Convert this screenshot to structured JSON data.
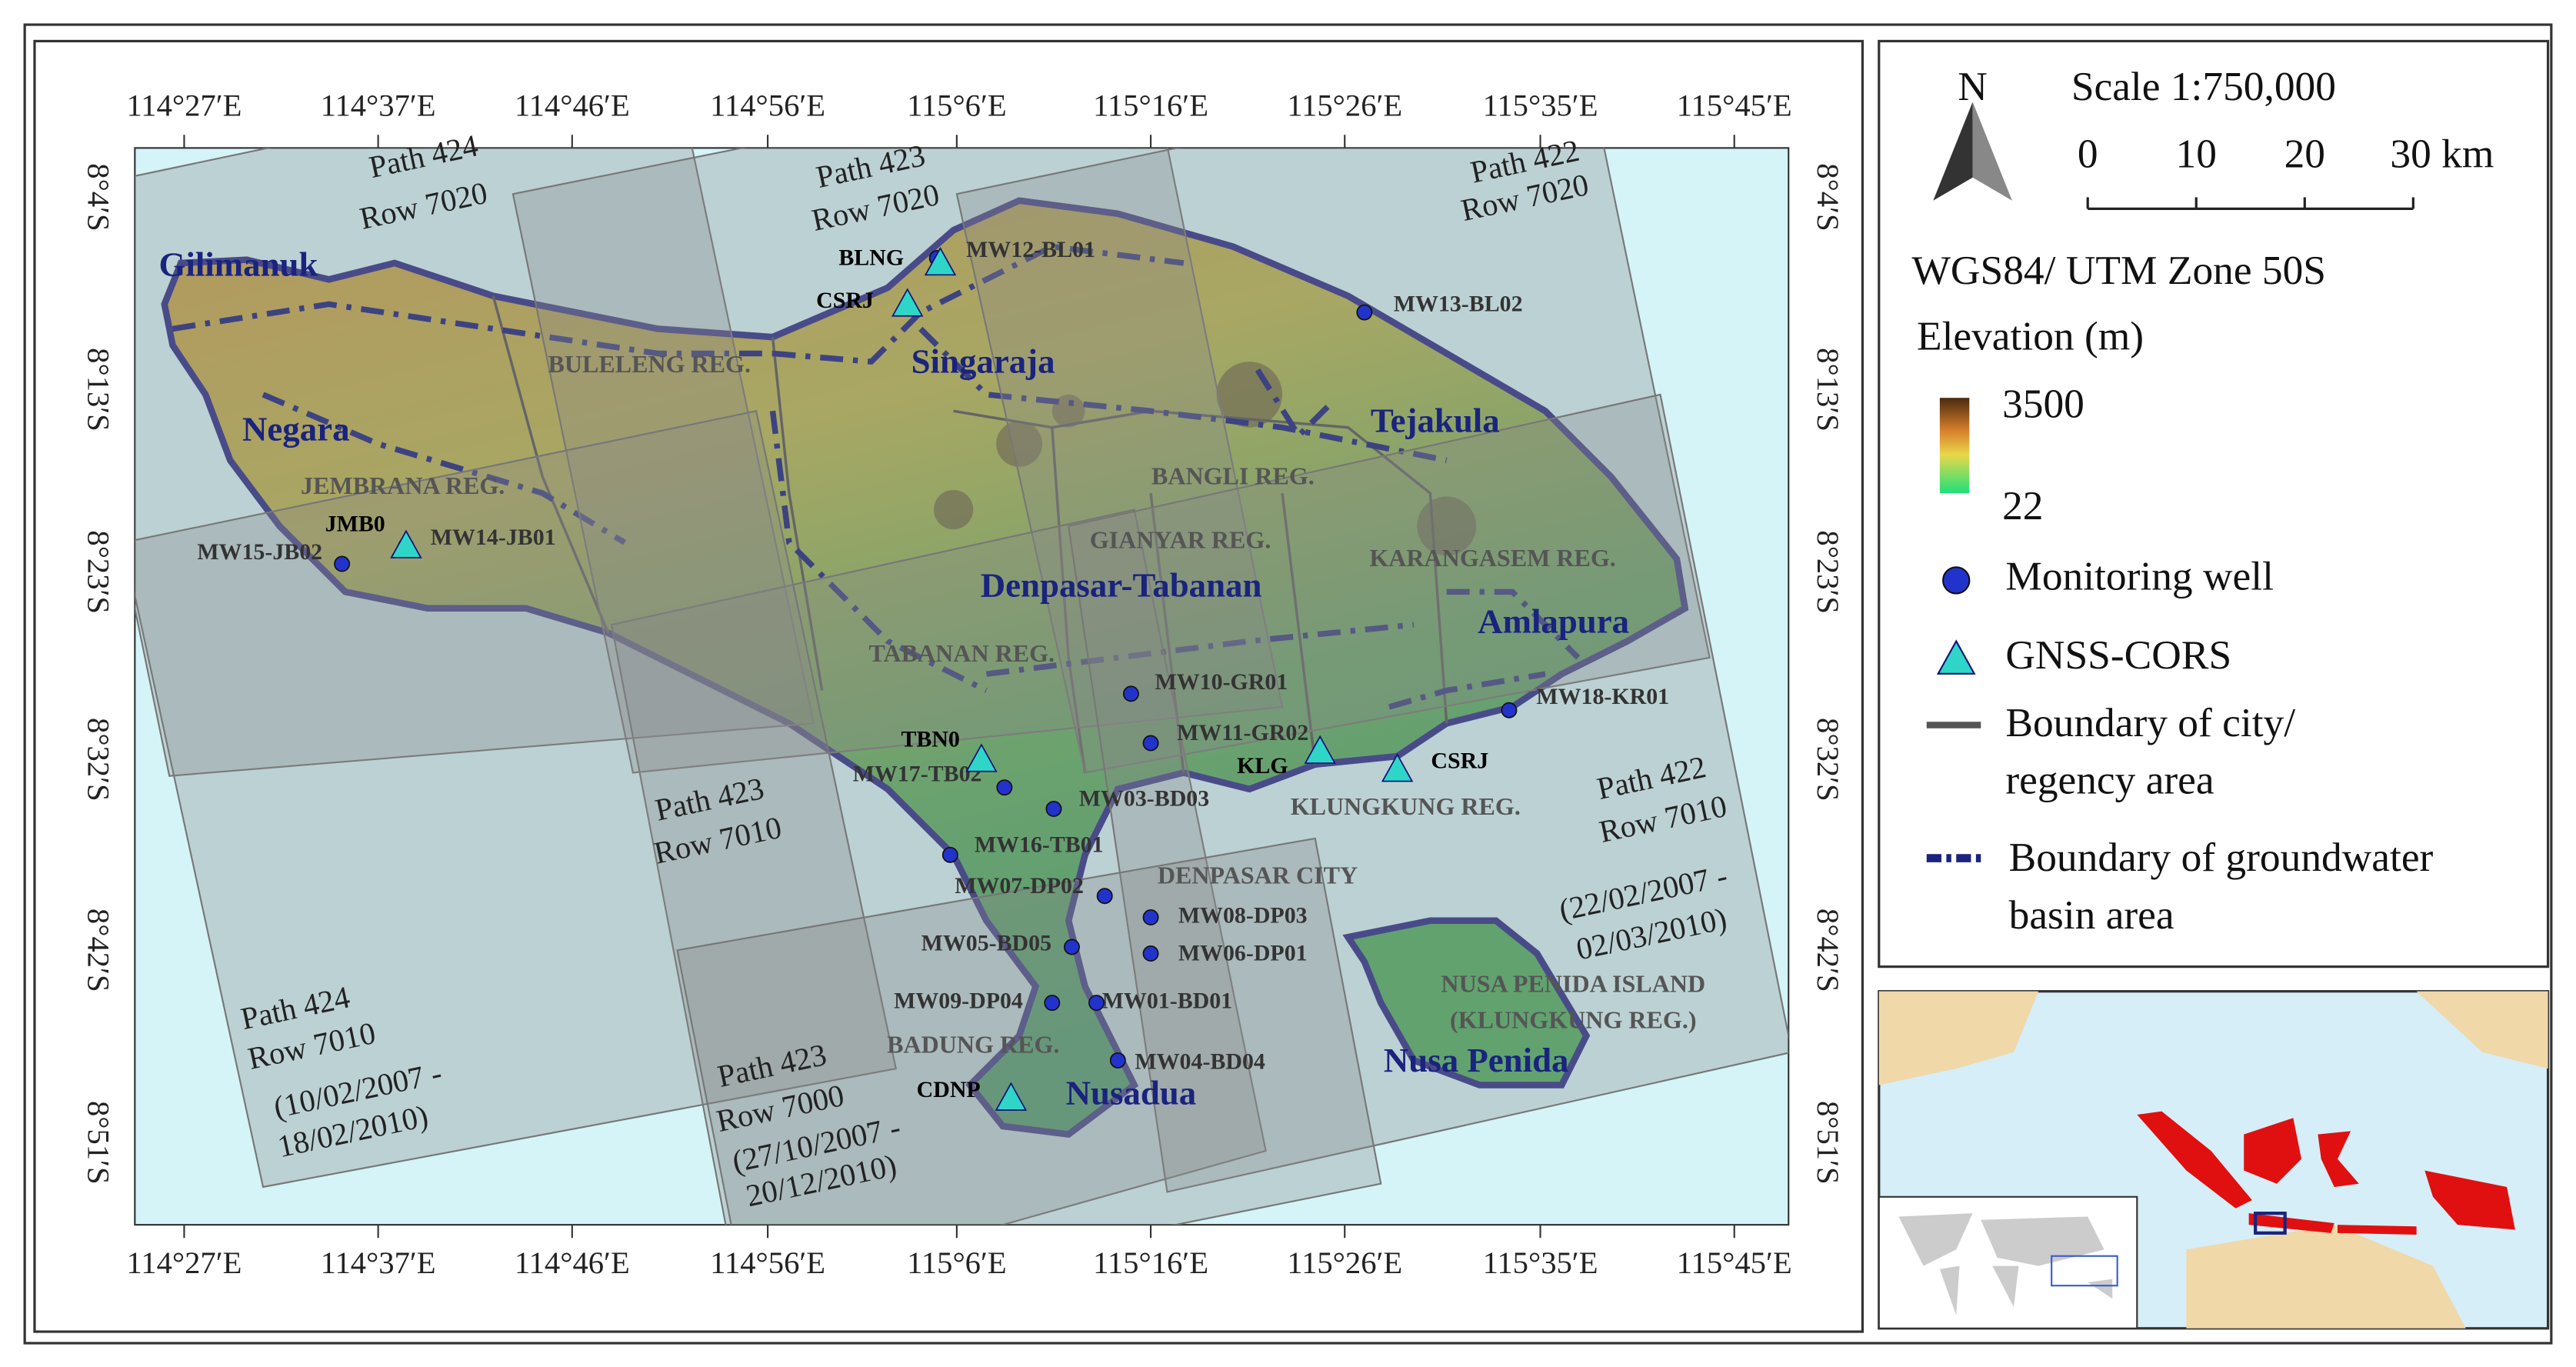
{
  "map": {
    "longitude_labels": [
      "114°27′E",
      "114°37′E",
      "114°46′E",
      "114°56′E",
      "115°6′E",
      "115°16′E",
      "115°26′E",
      "115°35′E",
      "115°45′E"
    ],
    "latitude_labels": [
      "8°4′S",
      "8°13′S",
      "8°23′S",
      "8°32′S",
      "8°42′S",
      "8°51′S"
    ],
    "scenes": [
      {
        "path": "Path 424",
        "row": "Row 7020"
      },
      {
        "path": "Path 423",
        "row": "Row 7020"
      },
      {
        "path": "Path 422",
        "row": "Row 7020"
      },
      {
        "path": "Path 423",
        "row": "Row 7010"
      },
      {
        "path": "Path 422",
        "row": "Row 7010",
        "dates": [
          "(22/02/2007 -",
          "02/03/2010)"
        ]
      },
      {
        "path": "Path 424",
        "row": "Row 7010",
        "dates": [
          "(10/02/2007 -",
          "18/02/2010)"
        ]
      },
      {
        "path": "Path 423",
        "row": "Row 7000",
        "dates": [
          "(27/10/2007 -",
          "20/12/2010)"
        ]
      }
    ],
    "places": [
      "Gilimanuk",
      "Negara",
      "Singaraja",
      "Tejakula",
      "Denpasar-Tabanan",
      "Amlapura",
      "Nusadua",
      "Nusa Penida"
    ],
    "regencies": [
      "BULELENG REG.",
      "JEMBRANA REG.",
      "BANGLI REG.",
      "GIANYAR REG.",
      "KARANGASEM REG.",
      "TABANAN REG.",
      "KLUNGKUNG REG.",
      "DENPASAR CITY",
      "BADUNG REG.",
      "NUSA PENIDA ISLAND",
      "(KLUNGKUNG REG.)"
    ],
    "monitoring_wells": [
      "MW15-JB02",
      "MW14-JB01",
      "MW12-BL01",
      "MW13-BL02",
      "MW10-GR01",
      "MW11-GR02",
      "MW18-KR01",
      "MW17-TB02",
      "MW03-BD03",
      "MW16-TB01",
      "MW07-DP02",
      "MW08-DP03",
      "MW06-DP01",
      "MW05-BD05",
      "MW09-DP04",
      "MW01-BD01",
      "MW04-BD04"
    ],
    "gnss_stations": [
      "BLNG",
      "CSRJ",
      "JMB0",
      "TBN0",
      "KLG",
      "CSRJ",
      "CDNP"
    ]
  },
  "legend": {
    "north": "N",
    "scale": "Scale 1:750,000",
    "scale_ticks": [
      "0",
      "10",
      "20",
      "30 km"
    ],
    "projection": "WGS84/ UTM Zone 50S",
    "elevation_title": "Elevation (m)",
    "elevation_max": "3500",
    "elevation_min": "22",
    "monitoring_well": "Monitoring well",
    "gnss": "GNSS-CORS",
    "city_boundary": [
      "Boundary of city/",
      "regency area"
    ],
    "basin_boundary": [
      "Boundary of groundwater",
      "basin area"
    ]
  }
}
